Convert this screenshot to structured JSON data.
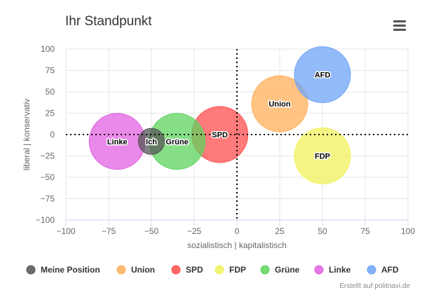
{
  "chart_data": {
    "type": "scatter",
    "title": "Ihr Standpunkt",
    "xlabel": "sozialistisch | kapitalistisch",
    "ylabel": "liberal | konservativ",
    "xlim": [
      -100,
      100
    ],
    "ylim": [
      -100,
      100
    ],
    "xticks": [
      -100,
      -75,
      -50,
      -25,
      0,
      25,
      50,
      75,
      100
    ],
    "yticks": [
      -100,
      -75,
      -50,
      -25,
      0,
      25,
      50,
      75,
      100
    ],
    "grid": true,
    "series": [
      {
        "name": "Meine Position",
        "label": "Ich",
        "x": -50,
        "y": -8,
        "size": 7,
        "color": "#555555"
      },
      {
        "name": "Union",
        "label": "Union",
        "x": 25,
        "y": 36,
        "size": 15,
        "color": "#ffb05a"
      },
      {
        "name": "SPD",
        "label": "SPD",
        "x": -10,
        "y": 0,
        "size": 15,
        "color": "#ff4d4d"
      },
      {
        "name": "FDP",
        "label": "FDP",
        "x": 50,
        "y": -25,
        "size": 15,
        "color": "#f2f25c"
      },
      {
        "name": "Grüne",
        "label": "Grüne",
        "x": -35,
        "y": -8,
        "size": 15,
        "color": "#5ed35e"
      },
      {
        "name": "Linke",
        "label": "Linke",
        "x": -70,
        "y": -8,
        "size": 15,
        "color": "#e162e1"
      },
      {
        "name": "AFD",
        "label": "AFD",
        "x": 50,
        "y": 70,
        "size": 15,
        "color": "#6fa4f7"
      }
    ]
  },
  "menu_icon": "hamburger-menu-icon",
  "credits": "Erstellt auf politnavi.de"
}
